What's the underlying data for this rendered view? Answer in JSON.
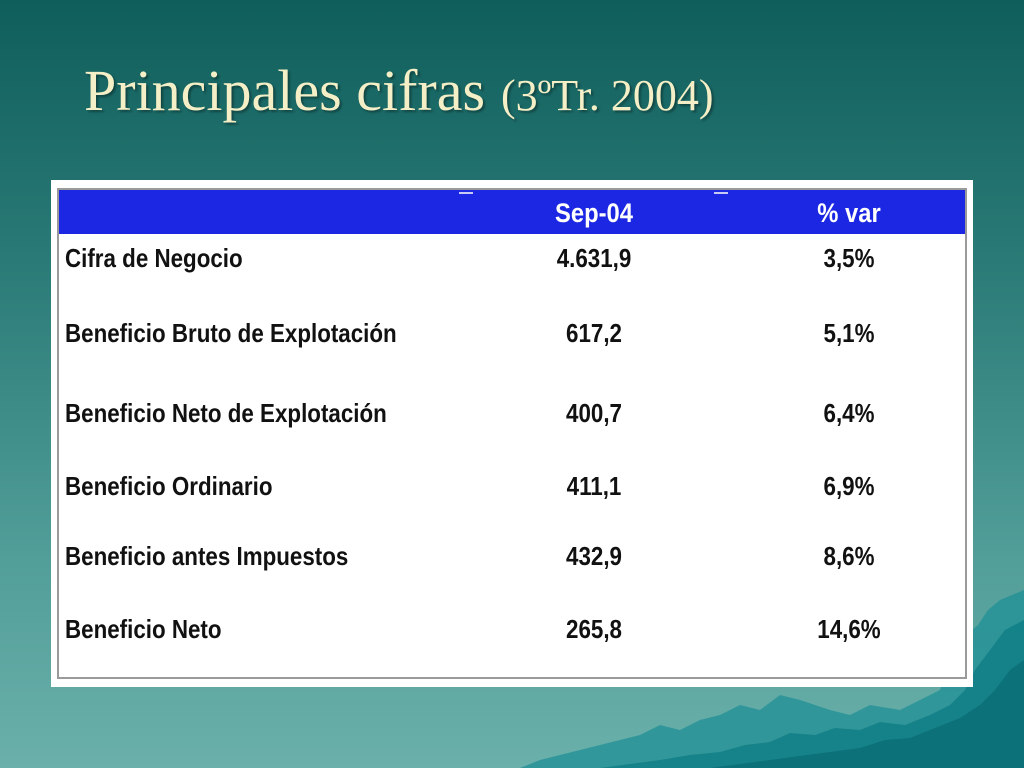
{
  "slide": {
    "title_main": "Principales cifras",
    "title_sub": "(3ºTr. 2004)"
  },
  "table": {
    "headers": {
      "label": "",
      "value": "Sep-04",
      "variation": "% var"
    },
    "rows": [
      {
        "label": "Cifra de Negocio",
        "value": "4.631,9",
        "variation": "3,5%"
      },
      {
        "label": "Beneficio Bruto de Explotación",
        "value": "617,2",
        "variation": "5,1%"
      },
      {
        "label": "Beneficio Neto de Explotación",
        "value": "400,7",
        "variation": "6,4%"
      },
      {
        "label": "Beneficio Ordinario",
        "value": "411,1",
        "variation": "6,9%"
      },
      {
        "label": "Beneficio antes Impuestos",
        "value": "432,9",
        "variation": "8,6%"
      },
      {
        "label": "Beneficio Neto",
        "value": "265,8",
        "variation": "14,6%"
      }
    ]
  },
  "colors": {
    "background_top": "#0f5e5b",
    "background_bottom": "#6bb0aa",
    "title": "#f4efc6",
    "header_bar": "#1c27e3",
    "header_text": "#ffffff",
    "body_text": "#111111"
  }
}
